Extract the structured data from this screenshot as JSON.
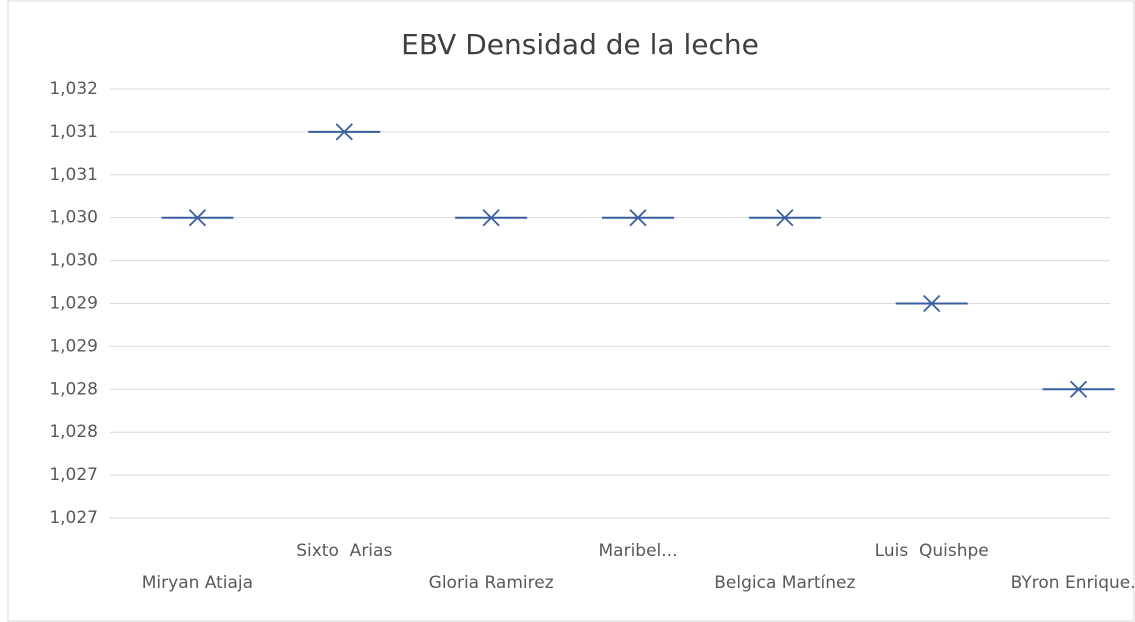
{
  "chart_data": {
    "type": "box",
    "title": "EBV Densidad de la leche",
    "categories": [
      "Miryan Atiaja",
      "Sixto  Arias",
      "Gloria Ramirez",
      "Maribel...",
      "Belgica Martínez",
      "Luis  Quishpe",
      "BYron Enrique..."
    ],
    "values": [
      1.03,
      1.031,
      1.03,
      1.03,
      1.03,
      1.029,
      1.028
    ],
    "color": "#3a5fa0",
    "ylim": [
      1.0265,
      1.0315
    ],
    "yticks": [
      {
        "value": 1.0265,
        "label": "1,027"
      },
      {
        "value": 1.027,
        "label": "1,027"
      },
      {
        "value": 1.0275,
        "label": "1,028"
      },
      {
        "value": 1.028,
        "label": "1,028"
      },
      {
        "value": 1.0285,
        "label": "1,029"
      },
      {
        "value": 1.029,
        "label": "1,029"
      },
      {
        "value": 1.0295,
        "label": "1,030"
      },
      {
        "value": 1.03,
        "label": "1,030"
      },
      {
        "value": 1.0305,
        "label": "1,031"
      },
      {
        "value": 1.031,
        "label": "1,031"
      },
      {
        "value": 1.0315,
        "label": "1,032"
      }
    ],
    "grid": true
  }
}
